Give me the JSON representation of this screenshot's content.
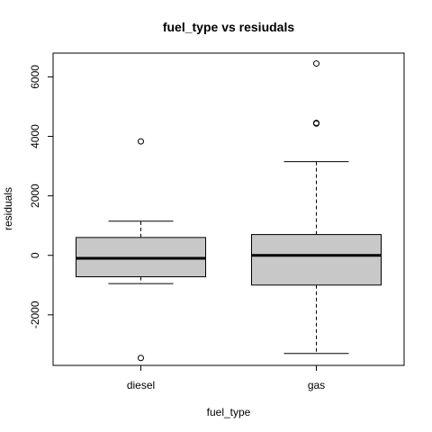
{
  "chart_data": {
    "type": "boxplot",
    "title": "fuel_type  vs resiudals",
    "xlabel": "fuel_type",
    "ylabel": "residuals",
    "ylim": [
      -3700,
      6800
    ],
    "y_ticks": [
      -2000,
      0,
      2000,
      4000,
      6000
    ],
    "y_tick_labels": [
      "-2000",
      "0",
      "2000",
      "4000",
      "6000"
    ],
    "categories": [
      "diesel",
      "gas"
    ],
    "box_fill": "#c8c8c8",
    "boxes": [
      {
        "category": "diesel",
        "whisker_low": -950,
        "q1": -720,
        "median": -100,
        "q3": 600,
        "whisker_high": 1150,
        "outliers": [
          3830,
          -3450
        ]
      },
      {
        "category": "gas",
        "whisker_low": -3300,
        "q1": -1000,
        "median": 0,
        "q3": 700,
        "whisker_high": 3150,
        "outliers": [
          4430,
          4450,
          6450
        ]
      }
    ]
  }
}
